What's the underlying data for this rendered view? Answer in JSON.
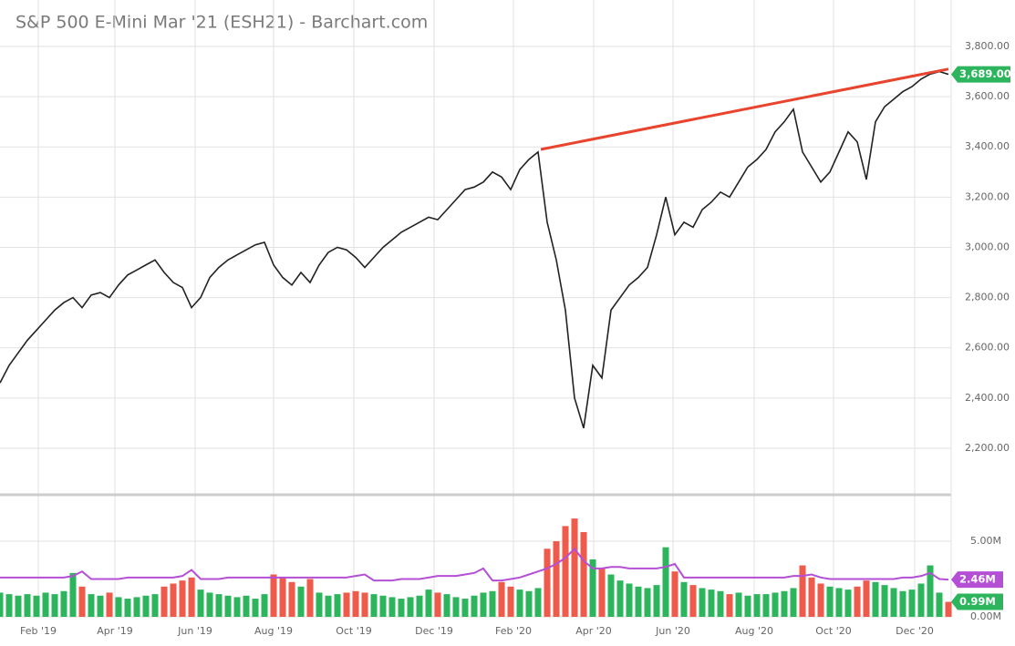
{
  "chart_data": {
    "type": "line",
    "title": "S&P 500 E-Mini Mar '21 (ESH21) - Barchart.com",
    "x": [
      0,
      1,
      2,
      3,
      4,
      5,
      6,
      7,
      8,
      9,
      10,
      11,
      12,
      13,
      14,
      15,
      16,
      17,
      18,
      19,
      20,
      21,
      22,
      23,
      24,
      25,
      26,
      27,
      28,
      29,
      30,
      31,
      32,
      33,
      34,
      35,
      36,
      37,
      38,
      39,
      40,
      41,
      42,
      43,
      44,
      45,
      46,
      47,
      48,
      49,
      50,
      51,
      52,
      53,
      54,
      55,
      56,
      57,
      58,
      59,
      60,
      61,
      62,
      63,
      64,
      65,
      66,
      67,
      68,
      69,
      70,
      71,
      72,
      73,
      74,
      75,
      76,
      77,
      78,
      79,
      80,
      81,
      82,
      83,
      84,
      85,
      86,
      87,
      88,
      89,
      90,
      91,
      92,
      93,
      94,
      95,
      96,
      97,
      98,
      99,
      100,
      101,
      102,
      103,
      104
    ],
    "xlim": [
      0,
      104
    ],
    "xticks": [
      {
        "value": 4.2,
        "label": "Feb '19"
      },
      {
        "value": 12.6,
        "label": "Apr '19"
      },
      {
        "value": 21.4,
        "label": "Jun '19"
      },
      {
        "value": 30.0,
        "label": "Aug '19"
      },
      {
        "value": 38.8,
        "label": "Oct '19"
      },
      {
        "value": 47.6,
        "label": "Dec '19"
      },
      {
        "value": 56.3,
        "label": "Feb '20"
      },
      {
        "value": 65.1,
        "label": "Apr '20"
      },
      {
        "value": 73.8,
        "label": "Jun '20"
      },
      {
        "value": 82.7,
        "label": "Aug '20"
      },
      {
        "value": 91.4,
        "label": "Oct '20"
      },
      {
        "value": 100.3,
        "label": "Dec '20"
      }
    ],
    "series": [
      {
        "name": "ESH21",
        "color": "#222222",
        "values": [
          2460,
          2530,
          2580,
          2630,
          2670,
          2710,
          2750,
          2780,
          2800,
          2760,
          2810,
          2820,
          2800,
          2850,
          2890,
          2910,
          2930,
          2950,
          2900,
          2860,
          2840,
          2760,
          2800,
          2880,
          2920,
          2950,
          2970,
          2990,
          3010,
          3020,
          2930,
          2880,
          2850,
          2900,
          2860,
          2930,
          2980,
          3000,
          2990,
          2960,
          2920,
          2960,
          3000,
          3030,
          3060,
          3080,
          3100,
          3120,
          3110,
          3150,
          3190,
          3230,
          3240,
          3260,
          3300,
          3280,
          3230,
          3310,
          3350,
          3380,
          3100,
          2950,
          2750,
          2400,
          2280,
          2530,
          2480,
          2750,
          2800,
          2850,
          2880,
          2920,
          3050,
          3200,
          3050,
          3100,
          3080,
          3150,
          3180,
          3220,
          3200,
          3260,
          3320,
          3350,
          3390,
          3460,
          3500,
          3550,
          3380,
          3320,
          3260,
          3300,
          3380,
          3460,
          3420,
          3270,
          3500,
          3560,
          3590,
          3620,
          3640,
          3670,
          3690,
          3700,
          3689
        ],
        "last_label": {
          "value": 3689,
          "label": "3,689.00"
        }
      }
    ],
    "ylim": [
      2022,
      3985
    ],
    "yticks": [
      {
        "value": 2200,
        "label": "2,200.00"
      },
      {
        "value": 2400,
        "label": "2,400.00"
      },
      {
        "value": 2600,
        "label": "2,600.00"
      },
      {
        "value": 2800,
        "label": "2,800.00"
      },
      {
        "value": 3000,
        "label": "3,000.00"
      },
      {
        "value": 3200,
        "label": "3,200.00"
      },
      {
        "value": 3400,
        "label": "3,400.00"
      },
      {
        "value": 3600,
        "label": "3,600.00"
      },
      {
        "value": 3800,
        "label": "3,800.00"
      }
    ],
    "trendline": {
      "x": [
        59.3,
        104
      ],
      "values": [
        3390,
        3710
      ],
      "color": "#e8442e"
    },
    "grid": true,
    "volume": {
      "ylim": [
        0,
        7.95
      ],
      "yticks": [
        {
          "value": 0,
          "label": "0.00M"
        },
        {
          "value": 5,
          "label": "5.00M"
        }
      ],
      "up_color": "#2db55d",
      "down_color": "#f05a4a",
      "values": [
        1.6,
        1.5,
        1.4,
        1.5,
        1.4,
        1.6,
        1.5,
        1.7,
        2.9,
        2.0,
        1.5,
        1.4,
        1.6,
        1.3,
        1.2,
        1.3,
        1.4,
        1.5,
        2.0,
        2.2,
        2.4,
        2.6,
        1.8,
        1.6,
        1.5,
        1.4,
        1.3,
        1.4,
        1.2,
        1.5,
        2.8,
        2.6,
        2.3,
        2.0,
        2.5,
        1.6,
        1.4,
        1.5,
        1.6,
        1.7,
        1.6,
        1.5,
        1.4,
        1.3,
        1.2,
        1.3,
        1.4,
        1.8,
        1.6,
        1.5,
        1.3,
        1.2,
        1.4,
        1.6,
        1.7,
        2.3,
        2.0,
        1.8,
        1.7,
        1.9,
        4.5,
        5.0,
        6.0,
        6.5,
        5.6,
        3.8,
        3.2,
        2.8,
        2.4,
        2.2,
        2.0,
        1.9,
        2.1,
        4.6,
        3.0,
        2.3,
        2.1,
        1.9,
        1.8,
        1.7,
        1.5,
        1.6,
        1.4,
        1.5,
        1.5,
        1.6,
        1.7,
        1.9,
        3.4,
        2.6,
        2.2,
        2.0,
        1.9,
        1.8,
        2.0,
        2.4,
        2.3,
        2.1,
        1.9,
        1.7,
        1.8,
        2.2,
        3.4,
        1.6,
        0.99
      ],
      "last_label": {
        "value": 0.99,
        "label": "0.99M"
      },
      "average": {
        "color": "#b44fd6",
        "values": [
          2.6,
          2.6,
          2.6,
          2.6,
          2.6,
          2.6,
          2.6,
          2.6,
          2.7,
          3.0,
          2.5,
          2.5,
          2.5,
          2.5,
          2.6,
          2.6,
          2.6,
          2.6,
          2.6,
          2.6,
          2.7,
          3.1,
          2.5,
          2.5,
          2.5,
          2.6,
          2.6,
          2.6,
          2.6,
          2.6,
          2.6,
          2.6,
          2.6,
          2.6,
          2.6,
          2.6,
          2.6,
          2.6,
          2.6,
          2.7,
          2.8,
          2.4,
          2.4,
          2.4,
          2.5,
          2.5,
          2.5,
          2.6,
          2.7,
          2.7,
          2.7,
          2.8,
          2.9,
          3.2,
          2.4,
          2.4,
          2.5,
          2.6,
          2.8,
          3.0,
          3.2,
          3.5,
          3.9,
          4.5,
          3.7,
          3.2,
          3.2,
          3.3,
          3.3,
          3.2,
          3.2,
          3.2,
          3.2,
          3.3,
          3.5,
          2.6,
          2.6,
          2.6,
          2.6,
          2.6,
          2.6,
          2.6,
          2.6,
          2.6,
          2.6,
          2.6,
          2.6,
          2.7,
          2.7,
          2.8,
          2.6,
          2.5,
          2.5,
          2.5,
          2.5,
          2.5,
          2.5,
          2.5,
          2.5,
          2.6,
          2.6,
          2.7,
          2.9,
          2.5,
          2.46
        ],
        "last_label": {
          "value": 2.46,
          "label": "2.46M"
        }
      }
    }
  }
}
